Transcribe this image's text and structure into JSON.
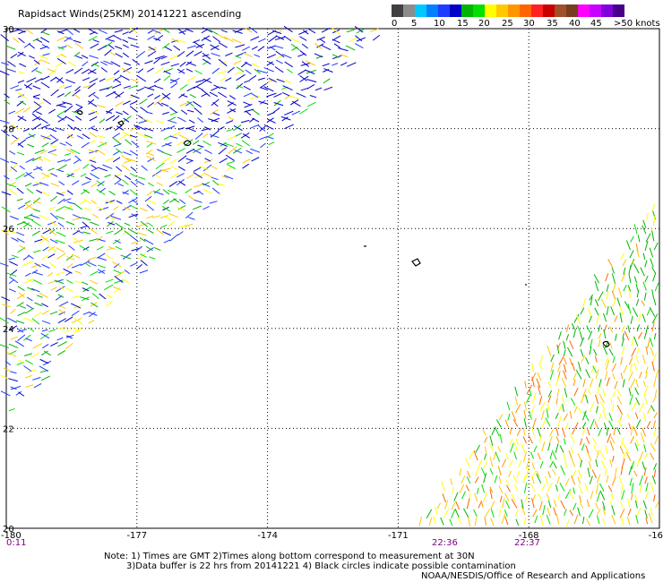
{
  "title": "Rapidsact Winds(25KM) 20141221 ascending",
  "colorbar": {
    "colors": [
      "#404040",
      "#8c8c8c",
      "#00c8ff",
      "#0080ff",
      "#1e3cff",
      "#0000c8",
      "#00b400",
      "#00e000",
      "#ffff00",
      "#ffc800",
      "#ff9600",
      "#ff6400",
      "#ff2020",
      "#c80000",
      "#a05028",
      "#783c1e",
      "#ff00ff",
      "#c800ff",
      "#8200dc",
      "#46008c"
    ],
    "labels": [
      "0",
      "5",
      "10",
      "15",
      "20",
      "25",
      "30",
      "35",
      "40",
      "45",
      ">50 knots"
    ]
  },
  "axes": {
    "x_labels": [
      "-180",
      "-177",
      "-174",
      "-171",
      "-168",
      "-16"
    ],
    "y_labels": [
      "30",
      "28",
      "26",
      "24",
      "22",
      "20"
    ],
    "lat_range": [
      20,
      30
    ],
    "lon_range": [
      -180,
      -165
    ]
  },
  "times": [
    "0:11",
    "22:36",
    "22:37"
  ],
  "notes": [
    "Note: 1) Times are GMT 2)Times along bottom correspond to measurement at 30N",
    "3)Data buffer is 22 hrs from 20141221 4) Black circles indicate possible contamination"
  ],
  "credit": "NOAA/NESDIS/Office of Research and Applications",
  "wind_swaths": [
    {
      "region": "northwest",
      "dominant_speed_knots": [
        10,
        25
      ],
      "dominant_colors": [
        "#0000c8",
        "#00b400",
        "#ffff00"
      ]
    },
    {
      "region": "southeast",
      "dominant_speed_knots": [
        15,
        35
      ],
      "dominant_colors": [
        "#00b400",
        "#ffff00",
        "#ffc800",
        "#ff9600"
      ]
    }
  ]
}
